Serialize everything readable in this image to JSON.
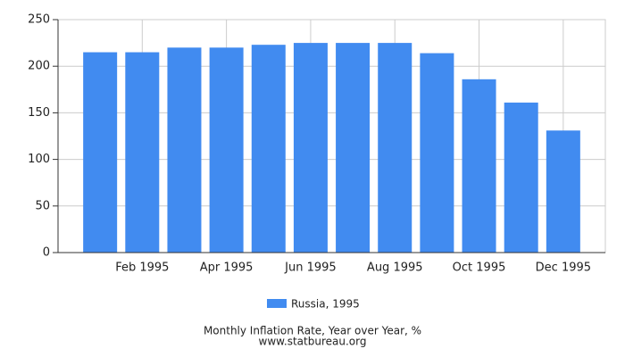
{
  "chart_data": {
    "type": "bar",
    "title": "Monthly Inflation Rate, Year over Year, %",
    "subtitle": "www.statbureau.org",
    "categories": [
      null,
      "Feb 1995",
      null,
      "Apr 1995",
      null,
      "Jun 1995",
      null,
      "Aug 1995",
      null,
      "Oct 1995",
      null,
      "Dec 1995"
    ],
    "series": [
      {
        "name": "Russia, 1995",
        "color": "#418bf0",
        "values": [
          215,
          215,
          220,
          220,
          223,
          225,
          225,
          225,
          214,
          186,
          161,
          131
        ]
      }
    ],
    "ylim": [
      0,
      250
    ],
    "yticks": [
      0,
      50,
      100,
      150,
      200,
      250
    ],
    "grid": true
  }
}
